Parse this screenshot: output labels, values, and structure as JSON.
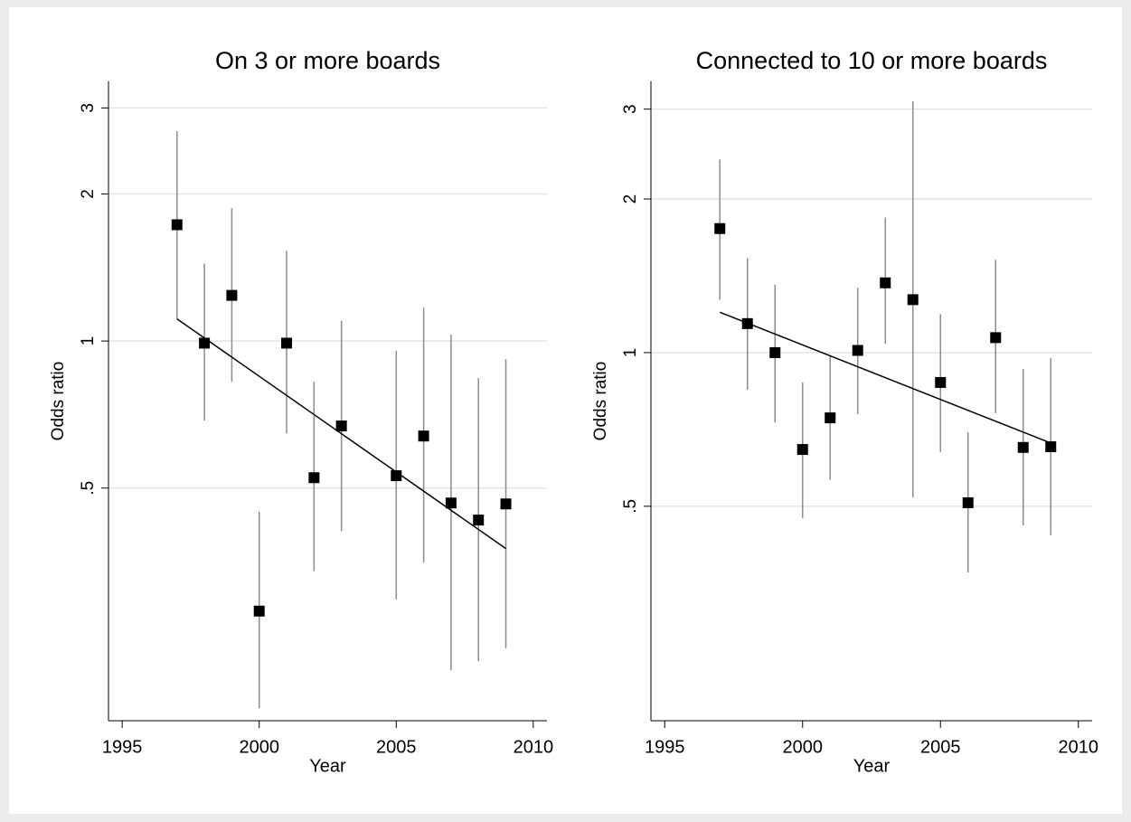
{
  "chart_data": [
    {
      "type": "scatter",
      "title": "On 3 or more boards",
      "x_label": "Year",
      "y_label": "Odds ratio",
      "x": [
        1997,
        1998,
        1999,
        2000,
        2001,
        2002,
        2003,
        2005,
        2006,
        2007,
        2008,
        2009
      ],
      "values": [
        1.73,
        0.99,
        1.24,
        0.28,
        0.99,
        0.525,
        0.67,
        0.53,
        0.639,
        0.466,
        0.43,
        0.464
      ],
      "upper": [
        2.69,
        1.44,
        1.87,
        0.447,
        1.53,
        0.825,
        1.1,
        0.954,
        1.17,
        1.03,
        0.84,
        0.918
      ],
      "lower": [
        1.11,
        0.687,
        0.825,
        0.177,
        0.647,
        0.338,
        0.408,
        0.296,
        0.352,
        0.212,
        0.221,
        0.235
      ],
      "fit": {
        "x": [
          1997,
          2009
        ],
        "values": [
          1.11,
          0.376
        ]
      },
      "color": "#000000",
      "ci_color": "#8c8c8c",
      "fit_color": "#000000",
      "log_scale": true,
      "grid": true,
      "xlim": [
        1994.5,
        2010.5
      ],
      "xticks": [
        1995,
        2000,
        2005,
        2010
      ],
      "ylim": [
        0.167,
        3.4
      ],
      "yticks": [
        {
          "value": 0.5,
          "label": ".5"
        },
        1,
        2,
        3
      ]
    },
    {
      "type": "scatter",
      "title": "Connected to 10 or more boards",
      "x_label": "Year",
      "y_label": "Odds ratio",
      "x": [
        1997,
        1998,
        1999,
        2000,
        2001,
        2002,
        2003,
        2004,
        2005,
        2006,
        2007,
        2008,
        2009
      ],
      "values": [
        1.75,
        1.14,
        1.0,
        0.646,
        0.745,
        1.01,
        1.37,
        1.27,
        0.874,
        0.508,
        1.07,
        0.652,
        0.654
      ],
      "upper": [
        2.39,
        1.53,
        1.36,
        0.874,
        0.988,
        1.34,
        1.84,
        3.11,
        1.19,
        0.698,
        1.52,
        0.929,
        0.976
      ],
      "lower": [
        1.27,
        0.846,
        0.73,
        0.474,
        0.563,
        0.758,
        1.04,
        0.52,
        0.639,
        0.371,
        0.761,
        0.459,
        0.439
      ],
      "fit": {
        "x": [
          1997,
          2009
        ],
        "values": [
          1.2,
          0.665
        ]
      },
      "color": "#000000",
      "ci_color": "#8c8c8c",
      "fit_color": "#000000",
      "log_scale": true,
      "grid": true,
      "xlim": [
        1994.5,
        2010.5
      ],
      "xticks": [
        1995,
        2000,
        2005,
        2010
      ],
      "ylim": [
        0.19,
        3.4
      ],
      "yticks": [
        {
          "value": 0.5,
          "label": ".5"
        },
        1,
        2,
        3
      ]
    }
  ]
}
